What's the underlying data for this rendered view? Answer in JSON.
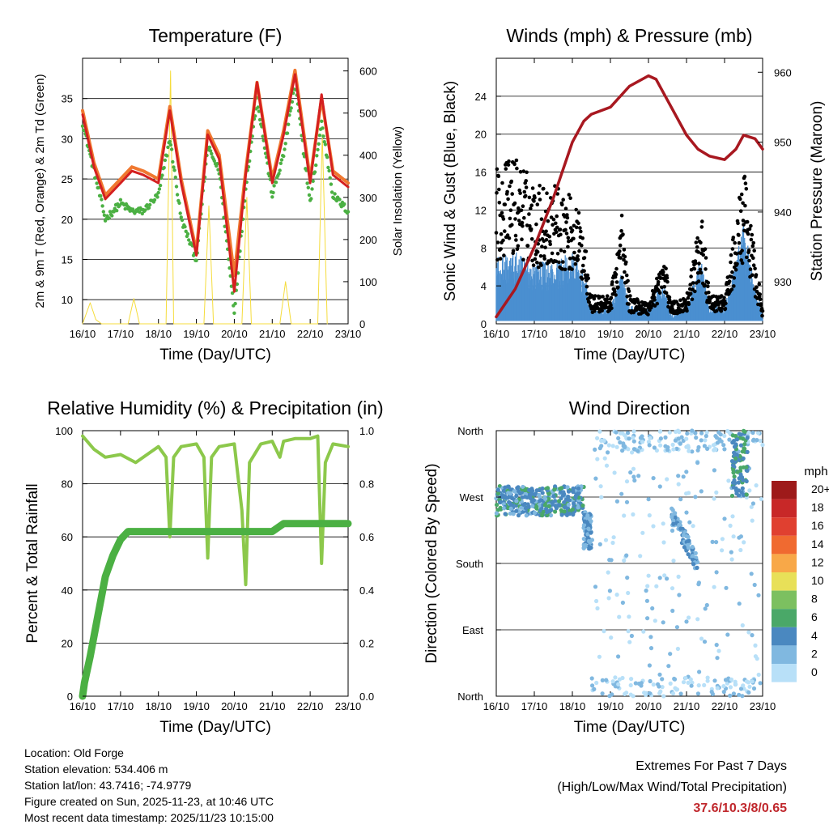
{
  "chart_data": [
    {
      "type": "line",
      "title": "Temperature (F)",
      "xlabel": "Time (Day/UTC)",
      "ylabel": "2m & 9m T (Red, Orange) & 2m Td (Green)",
      "ylabel_right": "Solar Insolation (Yellow)",
      "x_ticks": [
        "16/10",
        "17/10",
        "18/10",
        "19/10",
        "20/10",
        "21/10",
        "22/10",
        "23/10"
      ],
      "ylim": [
        7,
        40
      ],
      "y_ticks": [
        10,
        15,
        20,
        25,
        30,
        35
      ],
      "ylim_right": [
        0,
        630
      ],
      "y_ticks_right": [
        0,
        100,
        200,
        300,
        400,
        500,
        600
      ],
      "series": [
        {
          "name": "9m T",
          "color": "#f07830",
          "x": [
            0,
            0.3,
            0.6,
            1.0,
            1.3,
            1.6,
            2.0,
            2.3,
            2.6,
            3.0,
            3.3,
            3.6,
            4.0,
            4.3,
            4.6,
            5.0,
            5.3,
            5.6,
            6.0,
            6.3,
            6.6,
            7.0
          ],
          "values": [
            33.5,
            27,
            23,
            25,
            26.5,
            26,
            25,
            34,
            25,
            16,
            31,
            28,
            13,
            26,
            37,
            25,
            31,
            38.5,
            25,
            35,
            26,
            24.5
          ]
        },
        {
          "name": "2m T",
          "color": "#d42020",
          "x": [
            0,
            0.3,
            0.6,
            1.0,
            1.3,
            1.6,
            2.0,
            2.3,
            2.6,
            3.0,
            3.3,
            3.6,
            4.0,
            4.3,
            4.6,
            5.0,
            5.3,
            5.6,
            6.0,
            6.3,
            6.6,
            7.0
          ],
          "values": [
            33,
            26.5,
            22.5,
            24.5,
            26,
            25.5,
            24.5,
            33.5,
            24.5,
            15.5,
            30.5,
            27.5,
            11,
            25.5,
            37,
            24.5,
            30.5,
            38,
            24.5,
            35.5,
            25.5,
            24
          ]
        },
        {
          "name": "2m Td",
          "color": "#4bb043",
          "x": [
            0,
            0.3,
            0.6,
            1.0,
            1.3,
            1.6,
            2.0,
            2.3,
            2.6,
            3.0,
            3.3,
            3.6,
            4.0,
            4.3,
            4.6,
            5.0,
            5.3,
            5.6,
            6.0,
            6.3,
            6.6,
            7.0
          ],
          "values": [
            32,
            26,
            20,
            22,
            21,
            21,
            23,
            30,
            20,
            15,
            29,
            26,
            8.5,
            24,
            35,
            23,
            28,
            37,
            22,
            32,
            23,
            21
          ]
        }
      ],
      "series_right": [
        {
          "name": "Solar Insolation",
          "color": "#f5dc3c",
          "x": [
            0,
            0.2,
            0.35,
            0.5,
            1.2,
            1.35,
            1.5,
            2.2,
            2.32,
            2.4,
            3.2,
            3.33,
            3.45,
            4.2,
            4.33,
            4.45,
            5.2,
            5.35,
            5.5,
            6.2,
            6.32,
            6.45
          ],
          "values": [
            0,
            50,
            10,
            0,
            0,
            60,
            0,
            0,
            600,
            0,
            0,
            280,
            0,
            0,
            300,
            0,
            0,
            100,
            0,
            0,
            450,
            0
          ]
        }
      ]
    },
    {
      "type": "scatter",
      "title": "Winds (mph) & Pressure (mb)",
      "xlabel": "Time (Day/UTC)",
      "ylabel": "Sonic Wind & Gust (Blue, Black)",
      "ylabel_right": "Station Pressure (Maroon)",
      "x_ticks": [
        "16/10",
        "17/10",
        "18/10",
        "19/10",
        "20/10",
        "21/10",
        "22/10",
        "23/10"
      ],
      "ylim": [
        0,
        28
      ],
      "y_ticks": [
        0,
        4,
        8,
        12,
        16,
        20,
        24
      ],
      "ylim_right": [
        924,
        962
      ],
      "y_ticks_right": [
        930,
        940,
        950,
        960
      ],
      "series": [
        {
          "name": "Sonic Wind",
          "color": "#4a8fd0",
          "x": [
            0,
            0.5,
            1.0,
            1.5,
            2.0,
            2.3,
            2.5,
            3.0,
            3.3,
            3.5,
            4.0,
            4.4,
            4.6,
            5.0,
            5.4,
            5.6,
            6.0,
            6.5,
            7.0
          ],
          "values": [
            4,
            4,
            3.5,
            3.5,
            4,
            3,
            0.8,
            1,
            3,
            1,
            1,
            2.5,
            0.5,
            1,
            4,
            1,
            1,
            5.5,
            0.5
          ]
        },
        {
          "name": "Gust",
          "color": "#000000",
          "x": [
            0,
            0.5,
            1.0,
            1.5,
            2.0,
            2.3,
            2.5,
            3.0,
            3.3,
            3.5,
            4.0,
            4.4,
            4.6,
            5.0,
            5.4,
            5.6,
            6.0,
            6.5,
            7.0
          ],
          "values": [
            11,
            12,
            10,
            10,
            9,
            7,
            2,
            2,
            8,
            2,
            1.5,
            5,
            1.5,
            2,
            8,
            2,
            2,
            11,
            1
          ]
        }
      ],
      "series_right": [
        {
          "name": "Station Pressure",
          "color": "#a81820",
          "x": [
            0,
            0.5,
            1.0,
            1.5,
            2.0,
            2.3,
            2.5,
            3.0,
            3.5,
            4.0,
            4.2,
            4.5,
            5.0,
            5.3,
            5.6,
            6.0,
            6.3,
            6.5,
            6.8,
            7.0
          ],
          "values": [
            925,
            929,
            935,
            942,
            950,
            953,
            954,
            955,
            958,
            959.5,
            959,
            956,
            951,
            949,
            948,
            947.5,
            949,
            951,
            950.5,
            949
          ]
        }
      ]
    },
    {
      "type": "line",
      "title": "Relative Humidity (%) & Precipitation (in)",
      "xlabel": "Time (Day/UTC)",
      "ylabel": "Percent & Total Rainfall",
      "x_ticks": [
        "16/10",
        "17/10",
        "18/10",
        "19/10",
        "20/10",
        "21/10",
        "22/10",
        "23/10"
      ],
      "ylim": [
        0,
        100
      ],
      "y_ticks": [
        0,
        20,
        40,
        60,
        80,
        100
      ],
      "ylim_right": [
        0,
        1.0
      ],
      "y_ticks_right": [
        "0.0",
        "0.2",
        "0.4",
        "0.6",
        "0.8",
        "1.0"
      ],
      "series": [
        {
          "name": "Relative Humidity",
          "color": "#8cc84b",
          "x": [
            0,
            0.3,
            0.6,
            1.0,
            1.4,
            1.8,
            2.0,
            2.2,
            2.3,
            2.4,
            2.6,
            3.0,
            3.2,
            3.3,
            3.4,
            3.6,
            4.0,
            4.2,
            4.3,
            4.4,
            4.7,
            5.0,
            5.2,
            5.3,
            5.6,
            6.0,
            6.2,
            6.3,
            6.4,
            6.6,
            7.0
          ],
          "values": [
            98,
            93,
            90,
            91,
            88,
            92,
            94,
            90,
            60,
            90,
            94,
            95,
            90,
            52,
            90,
            94,
            95,
            70,
            42,
            88,
            95,
            96,
            90,
            96,
            97,
            97,
            98,
            50,
            88,
            95,
            94
          ]
        }
      ],
      "series_right": [
        {
          "name": "Total Precipitation",
          "color": "#4bb043",
          "x": [
            0,
            0.05,
            0.2,
            0.4,
            0.6,
            0.8,
            1.0,
            1.2,
            1.5,
            2.0,
            3.0,
            4.0,
            5.0,
            5.3,
            6.0,
            7.0
          ],
          "values": [
            0,
            0.05,
            0.15,
            0.3,
            0.45,
            0.53,
            0.59,
            0.62,
            0.62,
            0.62,
            0.62,
            0.62,
            0.62,
            0.65,
            0.65,
            0.65
          ]
        }
      ]
    },
    {
      "type": "scatter",
      "title": "Wind Direction",
      "xlabel": "Time (Day/UTC)",
      "ylabel": "Direction (Colored By Speed)",
      "x_ticks": [
        "16/10",
        "17/10",
        "18/10",
        "19/10",
        "20/10",
        "21/10",
        "22/10",
        "23/10"
      ],
      "y_ticks": [
        "North",
        "West",
        "South",
        "East",
        "North"
      ],
      "legend_title": "mph",
      "legend_labels": [
        "20+",
        "18",
        "16",
        "14",
        "12",
        "10",
        "8",
        "6",
        "4",
        "2",
        "0"
      ],
      "legend_colors": [
        "#9e1a1a",
        "#c82828",
        "#e04030",
        "#f06a30",
        "#f8a848",
        "#e8e058",
        "#7cc060",
        "#4aa868",
        "#4a88c0",
        "#80b8e0",
        "#b8e0f8"
      ],
      "clusters": [
        {
          "x": [
            0,
            2.3
          ],
          "direction_deg": [
            245,
            285
          ],
          "speed_mph": 4
        },
        {
          "x": [
            2.3,
            2.5
          ],
          "direction_deg": [
            200,
            250
          ],
          "speed_mph": 3
        },
        {
          "x": [
            2.5,
            7.0
          ],
          "direction_deg": [
            0,
            360
          ],
          "speed_mph": 1
        },
        {
          "x": [
            4.6,
            5.3
          ],
          "direction_deg": [
            180,
            245
          ],
          "speed_mph": 3
        },
        {
          "x": [
            6.2,
            6.6
          ],
          "direction_deg": [
            270,
            360
          ],
          "speed_mph": 5
        }
      ]
    }
  ],
  "info": {
    "location": "Location: Old Forge",
    "elevation": "Station elevation: 534.406 m",
    "latlon": "Station lat/lon: 43.7416; -74.9779",
    "created": "Figure created on Sun, 2025-11-23, at 10:46 UTC",
    "recent": "Most recent data timestamp: 2025/11/23 10:15:00"
  },
  "extremes": {
    "line1": "Extremes For Past 7 Days",
    "line2": "(High/Low/Max Wind/Total Precipitation)",
    "values": "37.6/10.3/8/0.65",
    "values_color": "#c0282d"
  }
}
